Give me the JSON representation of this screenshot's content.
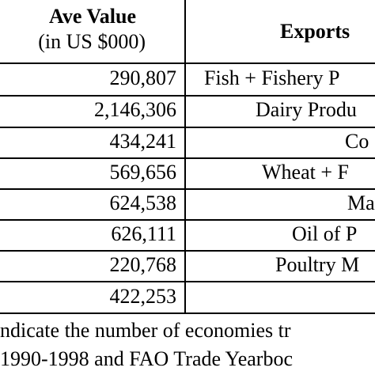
{
  "table": {
    "header": {
      "value_title": "Ave Value",
      "value_unit": "(in US $000)",
      "exports_title": "Exports"
    },
    "rows": [
      {
        "value": "290,807",
        "export": "Fish + Fishery P"
      },
      {
        "value": "2,146,306",
        "export": "Dairy Produ"
      },
      {
        "value": "434,241",
        "export": "Co"
      },
      {
        "value": "569,656",
        "export": "Wheat + F"
      },
      {
        "value": "624,538",
        "export": "Ma"
      },
      {
        "value": "626,111",
        "export": "Oil of P"
      },
      {
        "value": "220,768",
        "export": "Poultry M"
      },
      {
        "value": "422,253",
        "export": ""
      }
    ]
  },
  "notes": {
    "line1": "ndicate the number of economies tr",
    "line2": "1990-1998 and FAO Trade Yearboc"
  }
}
